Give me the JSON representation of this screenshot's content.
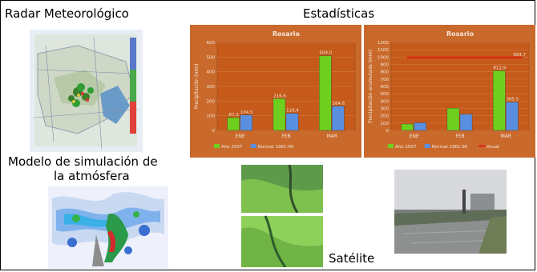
{
  "labels": {
    "radar": "Radar Meteorológico",
    "stats": "Estadísticas",
    "model_line1": "Modelo de simulación de",
    "model_line2": "la atmósfera",
    "satellite": "Satélite"
  },
  "colors": {
    "chart_bg": "#c96a2c",
    "chart_plot": "#c55a1a",
    "green": "#6fcf1f",
    "blue": "#5a8fe0",
    "red": "#e02018"
  },
  "chart_data": [
    {
      "type": "bar",
      "title": "Rosario",
      "ylabel": "Precipitación (mm)",
      "categories": [
        "ENE",
        "FEB",
        "MAR"
      ],
      "ylim": [
        0,
        600
      ],
      "yticks": [
        "0",
        "100",
        "200",
        "300",
        "400",
        "500",
        "600"
      ],
      "series": [
        {
          "name": "Año 2007",
          "values": [
            87.3,
            216.6,
            509.0
          ],
          "labels": [
            "87,3",
            "216,6",
            "509,0"
          ]
        },
        {
          "name": "Normal 1961-90",
          "values": [
            104.5,
            116.4,
            164.6
          ],
          "labels": [
            "104,5",
            "116,4",
            "164,6"
          ]
        }
      ]
    },
    {
      "type": "bar",
      "title": "Rosario",
      "ylabel": "Precipitación acumulada (mm)",
      "categories": [
        "ENE",
        "FEB",
        "MAR"
      ],
      "ylim": [
        0,
        1200
      ],
      "yticks": [
        "0",
        "100",
        "200",
        "300",
        "400",
        "500",
        "600",
        "700",
        "800",
        "900",
        "1000",
        "1100",
        "1200"
      ],
      "series": [
        {
          "name": "Año 2007",
          "values": [
            87.3,
            303.9,
            812.9
          ],
          "labels": [
            "",
            "",
            "812,9"
          ]
        },
        {
          "name": "Normal 1961-90",
          "values": [
            104.5,
            220.9,
            385.5
          ],
          "labels": [
            "",
            "",
            "385,5"
          ]
        }
      ],
      "reference_line": {
        "name": "Anual",
        "value": 993.7,
        "label": "993,7"
      }
    }
  ]
}
